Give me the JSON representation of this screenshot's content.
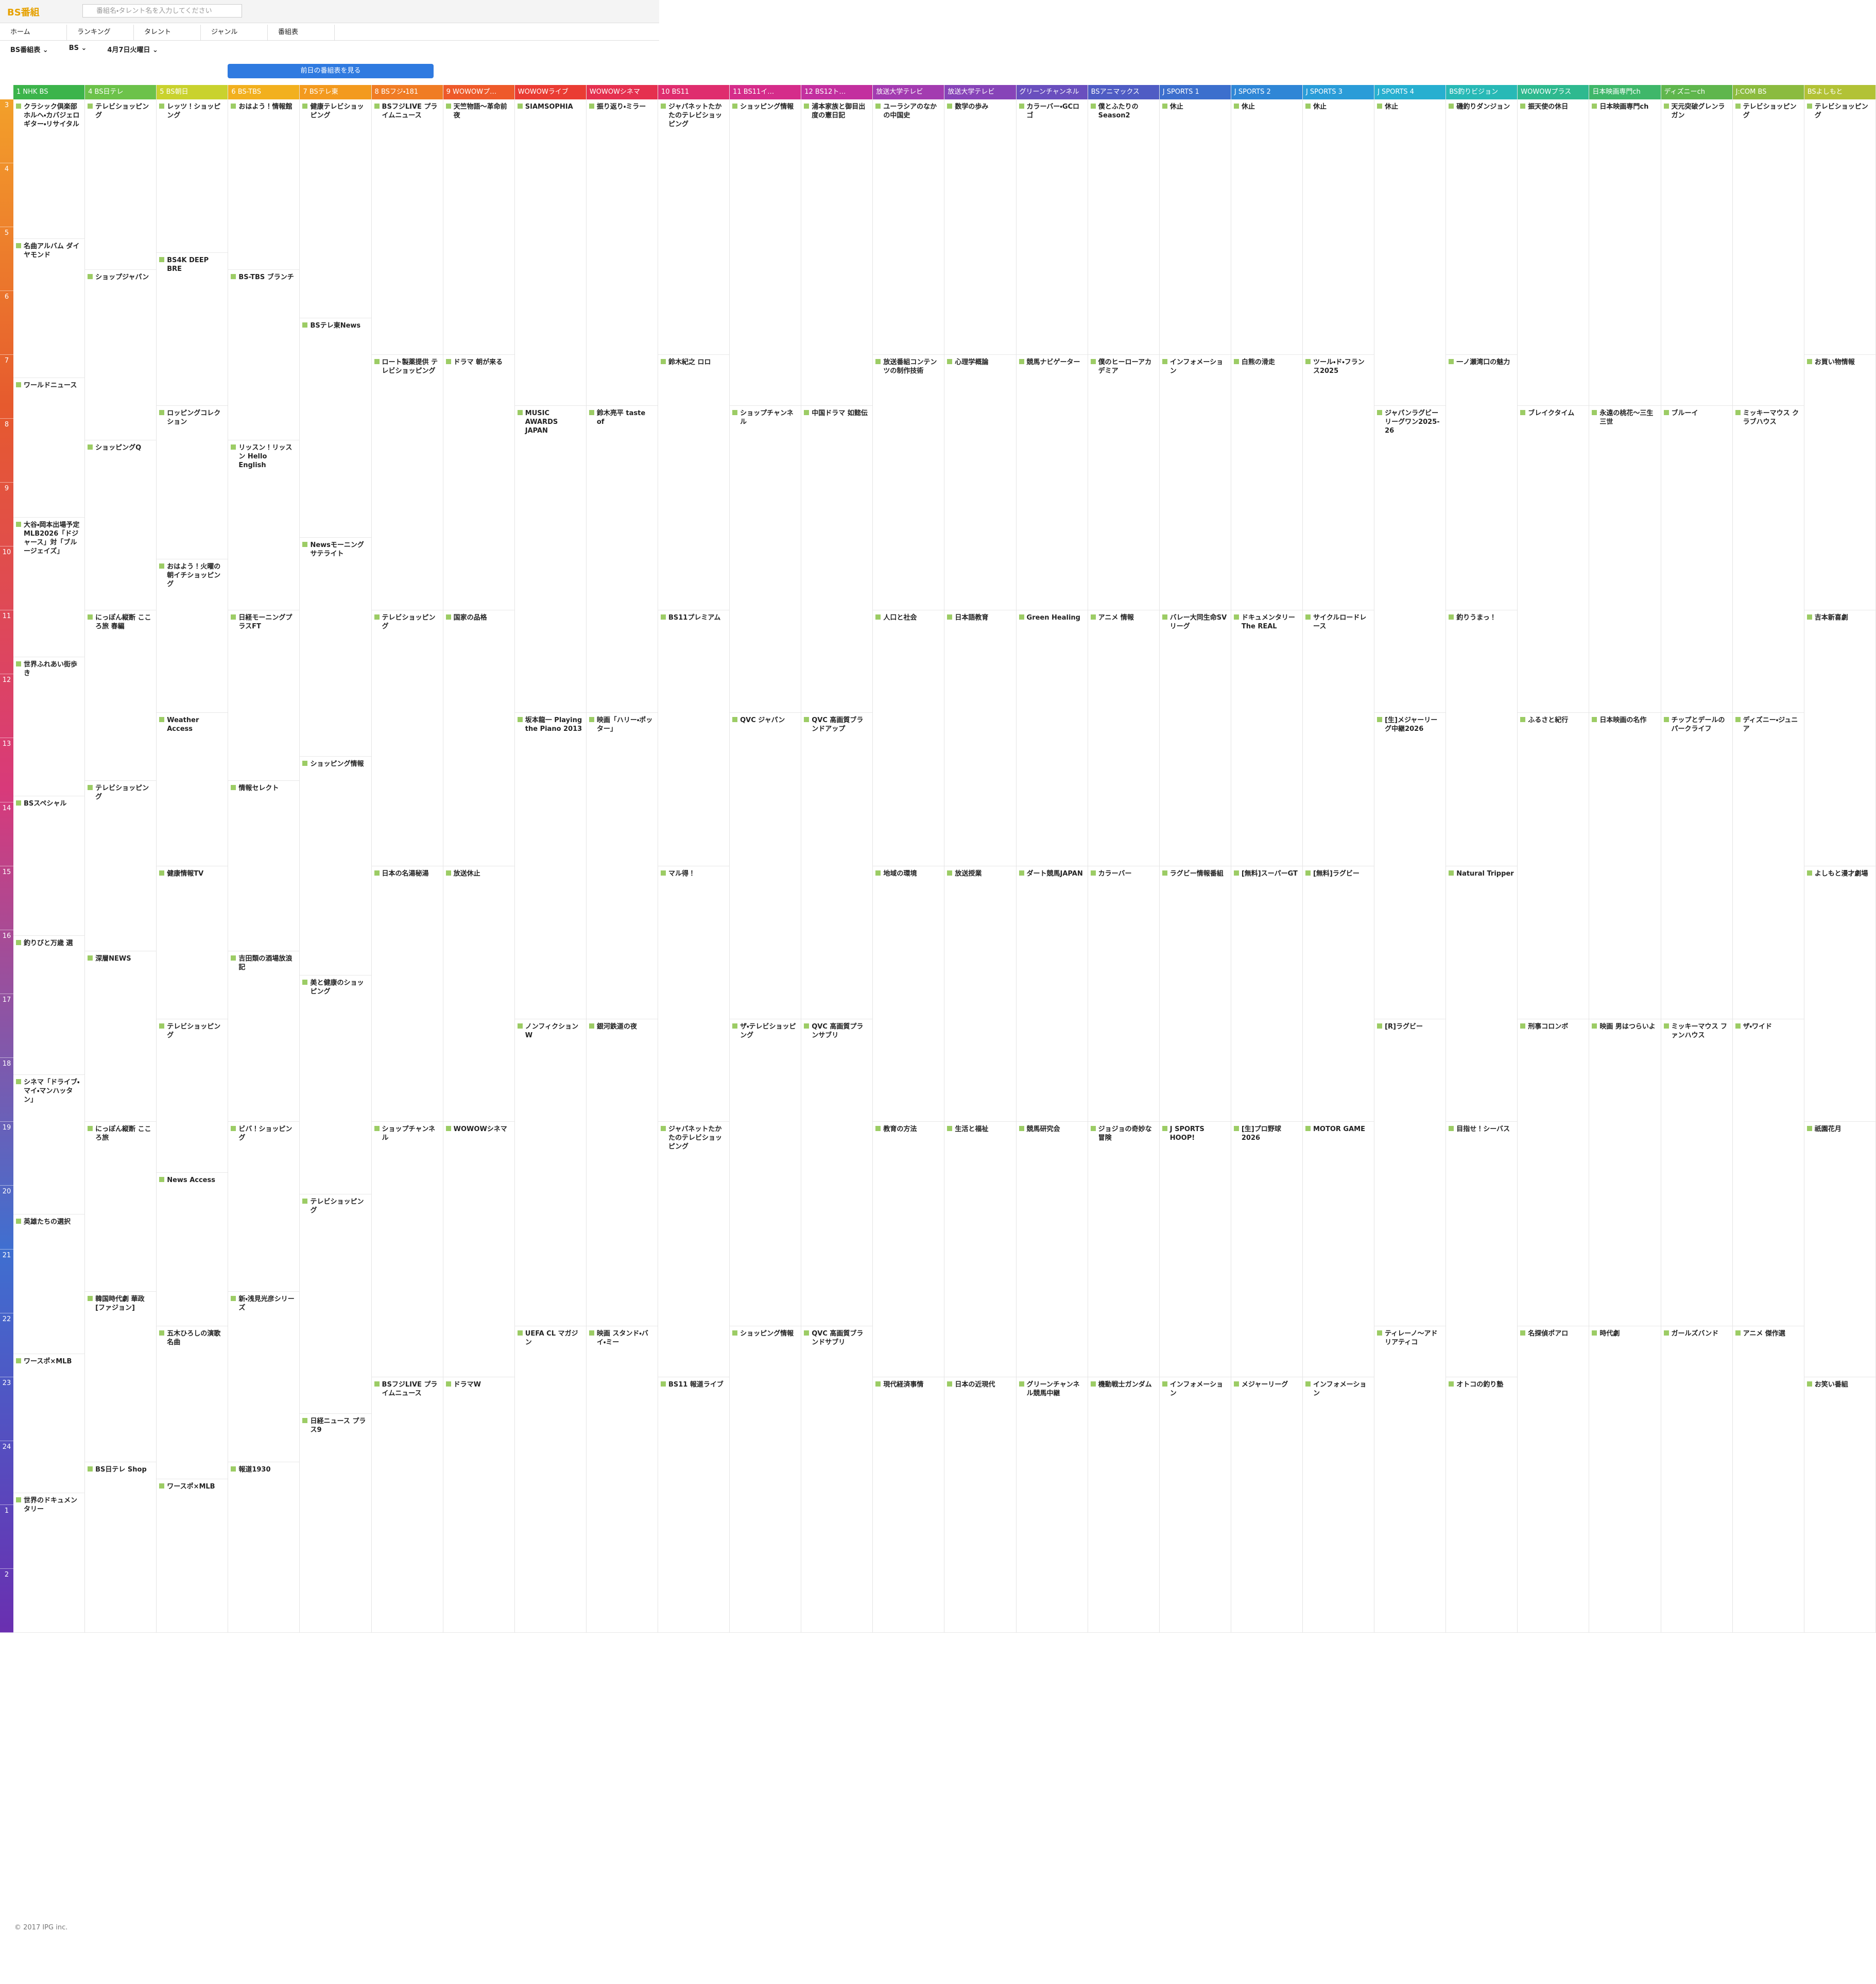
{
  "header": {
    "logo": "BS番組",
    "search_placeholder": "番組名・タレント名を入力してください"
  },
  "nav": [
    "ホーム",
    "ランキング",
    "タレント",
    "ジャンル",
    "番組表"
  ],
  "selectors": [
    "BS番組表",
    "BS",
    "4月7日火曜日"
  ],
  "button": "前日の番組表を見る",
  "hours": [
    "3",
    "4",
    "5",
    "6",
    "7",
    "8",
    "9",
    "10",
    "11",
    "12",
    "13",
    "14",
    "15",
    "16",
    "17",
    "18",
    "19",
    "20",
    "21",
    "22",
    "23",
    "24",
    "1",
    "2"
  ],
  "channels": [
    {
      "name": "1 NHK BS",
      "color": "#3cb44b",
      "programs": [
        "クラシック倶楽部 ホルヘ・カバジェロ ギター・リサイタル",
        "名曲アルバム ダイヤモンド",
        "ワールドニュース",
        "大谷・岡本出場予定 MLB2026「ドジャース」対「ブルージェイズ」",
        "世界ふれあい街歩き",
        "BSスペシャル",
        "釣りびと万歳 選",
        "シネマ「ドライブ・マイ・マンハッタン」",
        "英雄たちの選択",
        "ワースポ×MLB",
        "世界のドキュメンタリー"
      ]
    },
    {
      "name": "4 BS日テレ",
      "color": "#6cc24a",
      "programs": [
        "テレビショッピング",
        "ショップジャパン",
        "ショッピングQ",
        "にっぽん縦断 こころ旅 春編",
        "テレビショッピング",
        "深層NEWS",
        "にっぽん縦断 こころ旅",
        "韓国時代劇 華政[ファジョン]",
        "BS日テレ Shop"
      ]
    },
    {
      "name": "5 BS朝日",
      "color": "#c9d22e",
      "programs": [
        "レッツ！ショッピング",
        "BS4K DEEP BRE",
        "ロッピングコレクション",
        "おはよう！火曜の朝イチショッピング",
        "Weather Access",
        "健康情報TV",
        "テレビショッピング",
        "News Access",
        "五木ひろしの演歌名曲",
        "ワースポ×MLB"
      ]
    },
    {
      "name": "6 BS-TBS",
      "color": "#f2b01e",
      "programs": [
        "おはよう！情報館",
        "BS-TBS ブランチ",
        "リッスン！リッスン Hello English",
        "日経モーニングプラスFT",
        "情報セレクト",
        "吉田類の酒場放浪記",
        "ビバ！ショッピング",
        "新・浅見光彦シリーズ",
        "報道1930"
      ]
    },
    {
      "name": "7 BSテレ東",
      "color": "#f39a1e",
      "programs": [
        "健康テレビショッピング",
        "BSテレ東News",
        "Newsモーニングサテライト",
        "ショッピング情報",
        "美と健康のショッピング",
        "テレビショッピング",
        "日経ニュース プラス9"
      ]
    },
    {
      "name": "8 BSフジ・181",
      "color": "#f07c24",
      "programs": [
        "BSフジLIVE プライムニュース",
        "ロート製薬提供 テレビショッピング",
        "テレビショッピング",
        "日本の名湯秘湯",
        "ショップチャンネル",
        "BSフジLIVE プライムニュース"
      ]
    },
    {
      "name": "9 WOWOWプ…",
      "color": "#ee5a2a",
      "programs": [
        "天竺物語～革命前夜",
        "ドラマ 朝が来る",
        "国家の品格",
        "放送休止",
        "WOWOWシネマ",
        "ドラマW"
      ]
    },
    {
      "name": "WOWOWライブ",
      "color": "#ea3c33",
      "programs": [
        "SIAMSOPHIA",
        "MUSIC AWARDS JAPAN",
        "坂本龍一 Playing the Piano 2013",
        "ノンフィクション W",
        "UEFA CL マガジン"
      ]
    },
    {
      "name": "WOWOWシネマ",
      "color": "#e5304f",
      "programs": [
        "振り返り・ミラー",
        "鈴木亮平 taste of",
        "映画「ハリー・ポッター」",
        "銀河鉄道の夜",
        "映画 スタンド・バイ・ミー"
      ]
    },
    {
      "name": "10 BS11",
      "color": "#df2d6e",
      "programs": [
        "ジャパネットたかたのテレビショッピング",
        "鈴木紀之 ロロ",
        "BS11プレミアム",
        "マル得！",
        "ジャパネットたかたのテレビショッピング",
        "BS11 報道ライブ"
      ]
    },
    {
      "name": "11 BS11イ…",
      "color": "#d52c8a",
      "programs": [
        "ショッピング情報",
        "ショップチャンネル",
        "QVC ジャパン",
        "ザ・テレビショッピング",
        "ショッピング情報"
      ]
    },
    {
      "name": "12 BS12ト…",
      "color": "#c32f9f",
      "programs": [
        "浦本家族と御目出度の憲日記",
        "中国ドラマ 如懿伝",
        "QVC 高画質ブランドアップ",
        "QVC 高画質プランサブリ",
        "QVC 高画質ブランドサブリ"
      ]
    },
    {
      "name": "放送大学テレビ",
      "color": "#a33bb0",
      "programs": [
        "ユーラシアのなかの中国史",
        "放送番組コンテンツの制作技術",
        "人口と社会",
        "地域の環境",
        "教育の方法",
        "現代経済事情"
      ]
    },
    {
      "name": "放送大学テレビ",
      "color": "#8744b8",
      "programs": [
        "数学の歩み",
        "心理学概論",
        "日本語教育",
        "放送授業",
        "生活と福祉",
        "日本の近現代"
      ]
    },
    {
      "name": "グリーンチャンネル",
      "color": "#6a4fbe",
      "programs": [
        "カラーバー・GCロゴ",
        "競馬ナビゲーター",
        "Green Healing",
        "ダート競馬JAPAN",
        "競馬研究会",
        "グリーンチャンネル競馬中継"
      ]
    },
    {
      "name": "BSアニマックス",
      "color": "#4f5cc4",
      "programs": [
        "僕とふたりのSeason2",
        "僕のヒーローアカデミア",
        "アニメ 情報",
        "カラーバー",
        "ジョジョの奇妙な冒険",
        "機動戦士ガンダム"
      ]
    },
    {
      "name": "J SPORTS 1",
      "color": "#3c6fcd",
      "programs": [
        "休止",
        "インフォメーション",
        "バレー大同生命SVリーグ",
        "ラグビー情報番組",
        "J SPORTS HOOP!",
        "インフォメーション"
      ]
    },
    {
      "name": "J SPORTS 2",
      "color": "#2f86d6",
      "programs": [
        "休止",
        "白熊の滑走",
        "ドキュメンタリー The REAL",
        "[無料]スーパーGT",
        "[生]プロ野球2026",
        "メジャーリーグ"
      ]
    },
    {
      "name": "J SPORTS 3",
      "color": "#2a9cd8",
      "programs": [
        "休止",
        "ツール・ド・フランス2025",
        "サイクルロードレース",
        "[無料]ラグビー",
        "MOTOR GAME",
        "インフォメーション"
      ]
    },
    {
      "name": "J SPORTS 4",
      "color": "#27afd0",
      "programs": [
        "休止",
        "ジャパンラグビー リーグワン2025-26",
        "[生]メジャーリーグ中継2026",
        "[R]ラグビー",
        "ティレーノ〜アドリアティコ"
      ]
    },
    {
      "name": "BS釣りビジョン",
      "color": "#28b9b6",
      "programs": [
        "磯釣りダンジョン",
        "一ノ瀬湾口の魅力",
        "釣りうまっ！",
        "Natural Tripper",
        "目指せ！シーバス",
        "オトコの釣り塾"
      ]
    },
    {
      "name": "WOWOWプラス",
      "color": "#2eb98f",
      "programs": [
        "振天使の休日",
        "ブレイクタイム",
        "ふるさと紀行",
        "刑事コロンボ",
        "名探偵ポアロ"
      ]
    },
    {
      "name": "日本映画専門ch",
      "color": "#3fb76a",
      "programs": [
        "日本映画専門ch",
        "永遠の桃花〜三生三世",
        "日本映画の名作",
        "映画 男はつらいよ",
        "時代劇"
      ]
    },
    {
      "name": "ディズニーch",
      "color": "#5fb64d",
      "programs": [
        "天元突破グレンラガン",
        "ブルーイ",
        "チップとデールのパークライフ",
        "ミッキーマウス ファンハウス",
        "ガールズバンド"
      ]
    },
    {
      "name": "J:COM BS",
      "color": "#8bbb3f",
      "programs": [
        "テレビショッピング",
        "ミッキーマウス クラブハウス",
        "ディズニー・ジュニア",
        "ザ・ワイド",
        "アニメ 傑作選"
      ]
    },
    {
      "name": "BSよしもと",
      "color": "#b2c236",
      "programs": [
        "テレビショッピング",
        "お買い物情報",
        "吉本新喜劇",
        "よしもと漫才劇場",
        "祇園花月",
        "お笑い番組"
      ]
    }
  ],
  "footer": "© 2017 IPG inc."
}
